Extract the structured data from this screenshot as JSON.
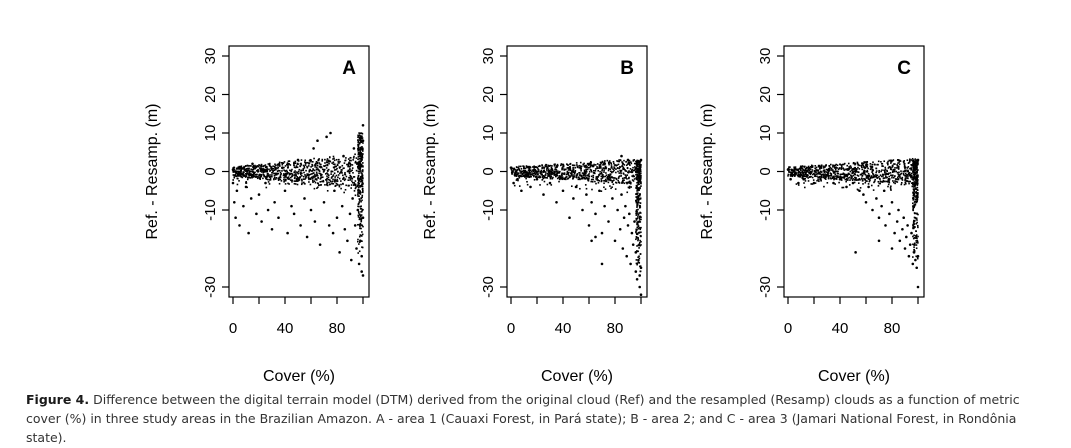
{
  "chart_data": [
    {
      "type": "scatter",
      "panel_label": "A",
      "xlabel": "Cover (%)",
      "ylabel": "Ref. - Resamp. (m)",
      "xlim": [
        0,
        100
      ],
      "ylim": [
        -30,
        30
      ],
      "xticks": [
        0,
        40,
        80
      ],
      "yticks": [
        -30,
        -10,
        0,
        10,
        20,
        30
      ],
      "xtick_minor": [
        20,
        60,
        100
      ],
      "grid": false,
      "series": [
        {
          "points": [
            [
              0,
              0.5
            ],
            [
              0,
              -3
            ],
            [
              1,
              -8
            ],
            [
              2,
              -12
            ],
            [
              3,
              -5
            ],
            [
              5,
              -14
            ],
            [
              6,
              1
            ],
            [
              8,
              -9
            ],
            [
              10,
              -4
            ],
            [
              12,
              -16
            ],
            [
              14,
              -7
            ],
            [
              15,
              2
            ],
            [
              18,
              -11
            ],
            [
              20,
              -6
            ],
            [
              22,
              -13
            ],
            [
              24,
              0
            ],
            [
              25,
              -3
            ],
            [
              27,
              -10
            ],
            [
              30,
              -15
            ],
            [
              32,
              -8
            ],
            [
              35,
              -12
            ],
            [
              38,
              1
            ],
            [
              40,
              -5
            ],
            [
              42,
              -16
            ],
            [
              45,
              -9
            ],
            [
              47,
              -11
            ],
            [
              50,
              3
            ],
            [
              52,
              -14
            ],
            [
              55,
              -7
            ],
            [
              57,
              -17
            ],
            [
              60,
              -10
            ],
            [
              62,
              6
            ],
            [
              63,
              -13
            ],
            [
              65,
              8
            ],
            [
              67,
              -19
            ],
            [
              70,
              -8
            ],
            [
              72,
              9
            ],
            [
              74,
              -14
            ],
            [
              75,
              10
            ],
            [
              77,
              -16
            ],
            [
              78,
              -5
            ],
            [
              80,
              -12
            ],
            [
              82,
              -21
            ],
            [
              84,
              -9
            ],
            [
              85,
              4
            ],
            [
              86,
              -15
            ],
            [
              88,
              -18
            ],
            [
              90,
              -11
            ],
            [
              91,
              -23
            ],
            [
              92,
              -7
            ],
            [
              93,
              6
            ],
            [
              94,
              -14
            ],
            [
              95,
              -20
            ],
            [
              96,
              -10
            ],
            [
              97,
              -24
            ],
            [
              98,
              -18
            ],
            [
              99,
              -26
            ],
            [
              99,
              -22
            ],
            [
              100,
              -27
            ],
            [
              100,
              12
            ],
            [
              100,
              8
            ],
            [
              100,
              -12
            ]
          ]
        }
      ]
    },
    {
      "type": "scatter",
      "panel_label": "B",
      "xlabel": "Cover (%)",
      "ylabel": "Ref. - Resamp. (m)",
      "xlim": [
        0,
        100
      ],
      "ylim": [
        -30,
        30
      ],
      "xticks": [
        0,
        40,
        80
      ],
      "yticks": [
        -30,
        -10,
        0,
        10,
        20,
        30
      ],
      "xtick_minor": [
        20,
        60,
        100
      ],
      "grid": false,
      "series": [
        {
          "points": [
            [
              0,
              1
            ],
            [
              2,
              -3
            ],
            [
              5,
              -2
            ],
            [
              8,
              -5
            ],
            [
              12,
              -1
            ],
            [
              15,
              -4
            ],
            [
              20,
              -2
            ],
            [
              25,
              -6
            ],
            [
              30,
              -3
            ],
            [
              35,
              -8
            ],
            [
              40,
              -5
            ],
            [
              45,
              -12
            ],
            [
              48,
              -7
            ],
            [
              50,
              -4
            ],
            [
              55,
              -10
            ],
            [
              58,
              -6
            ],
            [
              60,
              -14
            ],
            [
              62,
              -8
            ],
            [
              65,
              -11
            ],
            [
              68,
              -5
            ],
            [
              70,
              -16
            ],
            [
              72,
              -9
            ],
            [
              75,
              -13
            ],
            [
              78,
              -7
            ],
            [
              80,
              -18
            ],
            [
              82,
              -10
            ],
            [
              84,
              -15
            ],
            [
              85,
              -6
            ],
            [
              86,
              -20
            ],
            [
              87,
              -12
            ],
            [
              88,
              -9
            ],
            [
              89,
              -22
            ],
            [
              90,
              -14
            ],
            [
              91,
              -11
            ],
            [
              92,
              -24
            ],
            [
              93,
              -16
            ],
            [
              94,
              -19
            ],
            [
              95,
              -13
            ],
            [
              96,
              -26
            ],
            [
              96,
              -21
            ],
            [
              97,
              -28
            ],
            [
              98,
              -23
            ],
            [
              99,
              -30
            ],
            [
              99,
              -27
            ],
            [
              100,
              -32
            ],
            [
              100,
              -25
            ],
            [
              65,
              -17
            ],
            [
              62,
              -18
            ],
            [
              70,
              -24
            ],
            [
              85,
              4
            ],
            [
              90,
              3
            ],
            [
              100,
              3
            ]
          ]
        }
      ]
    },
    {
      "type": "scatter",
      "panel_label": "C",
      "xlabel": "Cover (%)",
      "ylabel": "Ref. - Resamp. (m)",
      "xlim": [
        0,
        100
      ],
      "ylim": [
        -30,
        30
      ],
      "xticks": [
        0,
        40,
        80
      ],
      "yticks": [
        -30,
        -10,
        0,
        10,
        20,
        30
      ],
      "xtick_minor": [
        20,
        60,
        100
      ],
      "grid": false,
      "series": [
        {
          "points": [
            [
              0,
              0.5
            ],
            [
              2,
              -2
            ],
            [
              5,
              -1
            ],
            [
              8,
              -3
            ],
            [
              12,
              -2
            ],
            [
              15,
              -1
            ],
            [
              20,
              -3
            ],
            [
              25,
              -2
            ],
            [
              30,
              -1
            ],
            [
              35,
              -3
            ],
            [
              40,
              -2
            ],
            [
              45,
              -4
            ],
            [
              50,
              -3
            ],
            [
              55,
              -5
            ],
            [
              58,
              -6
            ],
            [
              60,
              -8
            ],
            [
              62,
              -4
            ],
            [
              65,
              -10
            ],
            [
              68,
              -7
            ],
            [
              70,
              -12
            ],
            [
              72,
              -9
            ],
            [
              74,
              -5
            ],
            [
              75,
              -14
            ],
            [
              78,
              -11
            ],
            [
              80,
              -8
            ],
            [
              82,
              -16
            ],
            [
              84,
              -13
            ],
            [
              85,
              -10
            ],
            [
              86,
              -18
            ],
            [
              88,
              -15
            ],
            [
              89,
              -12
            ],
            [
              90,
              -20
            ],
            [
              91,
              -17
            ],
            [
              92,
              -14
            ],
            [
              93,
              -22
            ],
            [
              94,
              -19
            ],
            [
              95,
              -16
            ],
            [
              96,
              -24
            ],
            [
              97,
              -21
            ],
            [
              98,
              -23
            ],
            [
              99,
              -25
            ],
            [
              100,
              -22
            ],
            [
              100,
              -30
            ],
            [
              52,
              -21
            ],
            [
              70,
              -18
            ],
            [
              80,
              -20
            ],
            [
              97,
              2
            ],
            [
              100,
              3
            ]
          ]
        }
      ]
    }
  ],
  "caption": {
    "label": "Figure 4.",
    "text": " Difference between the digital terrain model (DTM) derived from the original cloud (Ref) and the resampled (Resamp) clouds as a function of metric cover (%) in three study areas in the Brazilian Amazon. A - area 1 (Cauaxi Forest, in Pará state); B - area 2; and C - area 3 (Jamari National Forest, in Rondônia state)."
  }
}
